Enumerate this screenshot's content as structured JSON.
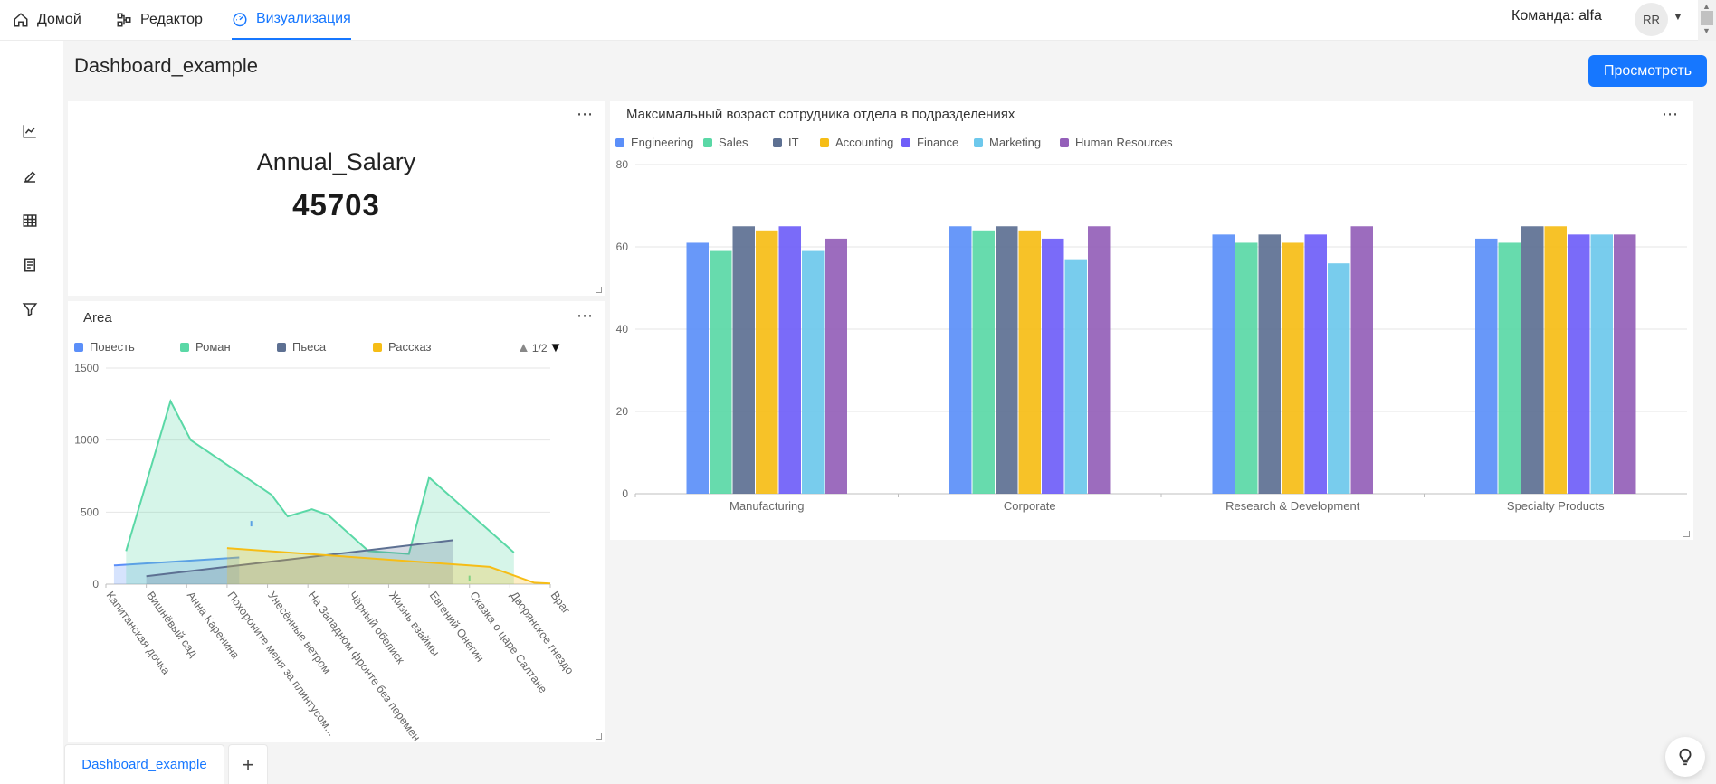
{
  "nav": {
    "items": [
      {
        "label": "Домой",
        "icon": "home-icon"
      },
      {
        "label": "Редактор",
        "icon": "editor-icon"
      },
      {
        "label": "Визуализация",
        "icon": "dashboard-icon"
      }
    ],
    "team_label": "Команда: alfa",
    "avatar_initials": "RR"
  },
  "rail": {
    "icons": [
      "line-chart-icon",
      "edit-icon",
      "table-icon",
      "report-icon",
      "filter-icon"
    ]
  },
  "header": {
    "title": "Dashboard_example",
    "view_button": "Просмотреть"
  },
  "kpi": {
    "name": "Annual_Salary",
    "value": "45703"
  },
  "area_chart": {
    "title": "Area",
    "pager": "1/2",
    "chart_data": {
      "type": "area",
      "categories": [
        "Капитанская дочка",
        "Вишнёвый сад",
        "Анна Каренина",
        "Похороните меня за плинтусом...",
        "Унесённые ветром",
        "На Западном фронте без перемен",
        "Чёрный обелиск",
        "Жизнь взаймы",
        "Евгений Онегин",
        "Сказка о царе Салтане",
        "Дворянское гнездо",
        "Враг"
      ],
      "yticks": [
        0,
        500,
        1000,
        1500
      ],
      "ylim": [
        0,
        1500
      ],
      "series": [
        {
          "name": "Повесть",
          "color": "#5b8ff9",
          "x": [
            0.2,
            3.3
          ],
          "values": [
            130,
            185
          ],
          "extra_mark": {
            "x": 3.6,
            "y": 420
          }
        },
        {
          "name": "Роман",
          "color": "#5ad8a6",
          "x": [
            0.5,
            1.6,
            2.1,
            4.1,
            4.5,
            5.1,
            5.5,
            6.5,
            7.5,
            8.0,
            10.1
          ],
          "values": [
            230,
            1270,
            1000,
            620,
            470,
            520,
            480,
            230,
            210,
            740,
            220
          ],
          "extra_mark": {
            "x": 9.0,
            "y": 40
          }
        },
        {
          "name": "Пьеса",
          "color": "#5d7092",
          "x": [
            1.0,
            8.6
          ],
          "values": [
            55,
            305
          ]
        },
        {
          "name": "Рассказ",
          "color": "#f6bd16",
          "x": [
            3.0,
            6.0,
            9.5,
            10.6,
            11.0
          ],
          "values": [
            250,
            190,
            120,
            10,
            5
          ]
        }
      ]
    }
  },
  "bar_chart": {
    "title": "Максимальный возраст сотрудника отдела в подразделениях",
    "chart_data": {
      "type": "bar",
      "categories": [
        "Manufacturing",
        "Corporate",
        "Research & Development",
        "Specialty Products"
      ],
      "yticks": [
        0,
        20,
        40,
        60,
        80
      ],
      "ylim": [
        0,
        80
      ],
      "series": [
        {
          "name": "Engineering",
          "color": "#5b8ff9",
          "values": [
            61,
            65,
            63,
            62
          ]
        },
        {
          "name": "Sales",
          "color": "#5ad8a6",
          "values": [
            59,
            64,
            61,
            61
          ]
        },
        {
          "name": "IT",
          "color": "#5d7092",
          "values": [
            65,
            65,
            63,
            65
          ]
        },
        {
          "name": "Accounting",
          "color": "#f6bd16",
          "values": [
            64,
            64,
            61,
            65
          ]
        },
        {
          "name": "Finance",
          "color": "#6f5ef9",
          "values": [
            65,
            62,
            63,
            63
          ]
        },
        {
          "name": "Marketing",
          "color": "#6dc8ec",
          "values": [
            59,
            57,
            56,
            63
          ]
        },
        {
          "name": "Human Resources",
          "color": "#945fb9",
          "values": [
            62,
            65,
            65,
            63
          ]
        }
      ]
    }
  },
  "tabs": {
    "active": "Dashboard_example",
    "add": "+"
  }
}
